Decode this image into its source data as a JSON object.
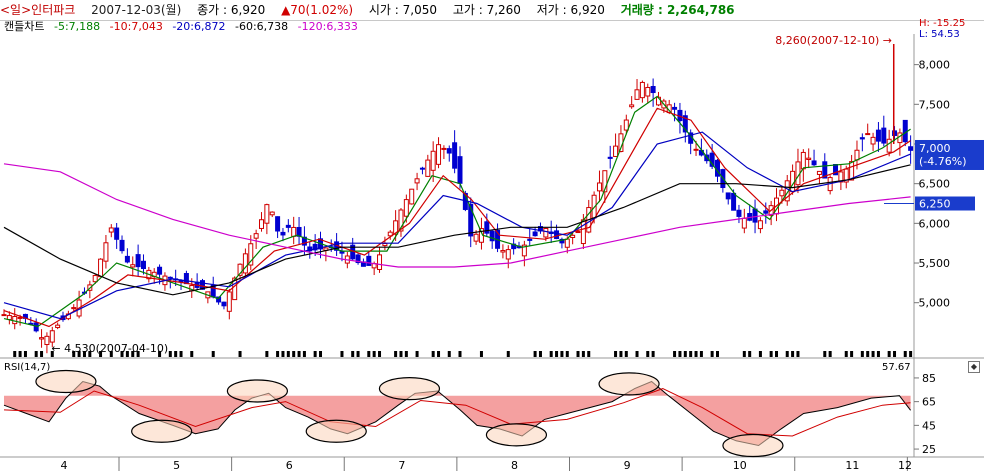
{
  "header": {
    "symbol": "<일>인터파크",
    "date": "2007-12-03(월)",
    "close_label": "종가 : 6,920",
    "change_label": "▲70(1.02%)",
    "open_label": "시가 : 7,050",
    "high_label": "고가 : 7,260",
    "low_label": "저가 : 6,920",
    "volume_label": "거래량 : 2,264,786"
  },
  "legend": {
    "candle": "캔들차트",
    "ma5": "-5:7,188",
    "ma10": "-10:7,043",
    "ma20": "-20:6,872",
    "ma60": "-60:6,738",
    "ma120": "-120:6,333"
  },
  "hl_box": {
    "h": "H: -15.25",
    "l": "L: 54.53"
  },
  "colors": {
    "ma5": "#008000",
    "ma10": "#d00000",
    "ma20": "#0000c0",
    "ma60": "#000000",
    "ma120": "#cc00cc",
    "up": "#d00000",
    "down": "#0000d0",
    "rsi_fill": "#f4a0a0",
    "rsi_line": "#000000",
    "signal": "#d00000",
    "ellipse_fill": "#fbd3b9"
  },
  "chart_data": {
    "type": "candlestick",
    "y_range": [
      4530,
      8260
    ],
    "y_ticks": [
      "8,000",
      "7,500",
      "7,000",
      "6,500",
      "6,000",
      "5,500",
      "5,000"
    ],
    "x_ticks": [
      "4",
      "5",
      "6",
      "7",
      "8",
      "9",
      "10",
      "11",
      "12"
    ],
    "annotations": {
      "high": "8,260(2007-12-10) →",
      "low": "← 4,530(2007-04-10)",
      "price_tag": "7,000",
      "price_tag_change": "(-4.76%)",
      "level_tag": "6,250"
    },
    "anchors": [
      [
        4.0,
        4850
      ],
      [
        4.2,
        4800
      ],
      [
        4.35,
        4530
      ],
      [
        4.6,
        4900
      ],
      [
        4.8,
        5300
      ],
      [
        4.95,
        5950
      ],
      [
        5.1,
        5500
      ],
      [
        5.3,
        5400
      ],
      [
        5.5,
        5300
      ],
      [
        5.8,
        5150
      ],
      [
        5.95,
        4950
      ],
      [
        6.1,
        5500
      ],
      [
        6.25,
        5900
      ],
      [
        6.35,
        6300
      ],
      [
        6.45,
        5800
      ],
      [
        6.55,
        6000
      ],
      [
        6.7,
        5650
      ],
      [
        6.9,
        5700
      ],
      [
        7.1,
        5550
      ],
      [
        7.2,
        5450
      ],
      [
        7.3,
        5500
      ],
      [
        7.5,
        6100
      ],
      [
        7.7,
        6650
      ],
      [
        7.85,
        7000
      ],
      [
        7.95,
        6900
      ],
      [
        8.05,
        6500
      ],
      [
        8.15,
        5800
      ],
      [
        8.25,
        5950
      ],
      [
        8.4,
        5650
      ],
      [
        8.6,
        5700
      ],
      [
        8.8,
        5950
      ],
      [
        8.95,
        5750
      ],
      [
        9.1,
        5900
      ],
      [
        9.3,
        6550
      ],
      [
        9.5,
        7200
      ],
      [
        9.65,
        7800
      ],
      [
        9.8,
        7600
      ],
      [
        9.95,
        7450
      ],
      [
        10.1,
        7000
      ],
      [
        10.3,
        6700
      ],
      [
        10.5,
        6100
      ],
      [
        10.7,
        6000
      ],
      [
        10.9,
        6400
      ],
      [
        11.1,
        6900
      ],
      [
        11.3,
        6550
      ],
      [
        11.5,
        6700
      ],
      [
        11.65,
        7150
      ],
      [
        11.8,
        7000
      ],
      [
        11.95,
        7150
      ],
      [
        12.05,
        6920
      ]
    ],
    "moving_averages": [
      {
        "name": "5",
        "points": [
          [
            4.0,
            4800
          ],
          [
            4.3,
            4700
          ],
          [
            4.7,
            5100
          ],
          [
            5.0,
            5500
          ],
          [
            5.4,
            5300
          ],
          [
            5.9,
            5050
          ],
          [
            6.3,
            5700
          ],
          [
            6.6,
            5850
          ],
          [
            7.0,
            5650
          ],
          [
            7.4,
            5650
          ],
          [
            7.8,
            6600
          ],
          [
            8.05,
            6500
          ],
          [
            8.25,
            5850
          ],
          [
            8.6,
            5700
          ],
          [
            9.0,
            5800
          ],
          [
            9.3,
            6300
          ],
          [
            9.6,
            7400
          ],
          [
            9.8,
            7600
          ],
          [
            10.1,
            7100
          ],
          [
            10.5,
            6350
          ],
          [
            10.8,
            6050
          ],
          [
            11.1,
            6700
          ],
          [
            11.5,
            6750
          ],
          [
            11.8,
            6950
          ],
          [
            12.05,
            7188
          ]
        ]
      },
      {
        "name": "10",
        "points": [
          [
            4.0,
            4900
          ],
          [
            4.4,
            4700
          ],
          [
            4.8,
            5050
          ],
          [
            5.1,
            5350
          ],
          [
            5.6,
            5250
          ],
          [
            6.0,
            5150
          ],
          [
            6.4,
            5650
          ],
          [
            6.8,
            5800
          ],
          [
            7.2,
            5600
          ],
          [
            7.6,
            6000
          ],
          [
            7.9,
            6600
          ],
          [
            8.15,
            6300
          ],
          [
            8.4,
            5850
          ],
          [
            8.8,
            5800
          ],
          [
            9.2,
            5950
          ],
          [
            9.5,
            6700
          ],
          [
            9.8,
            7450
          ],
          [
            10.1,
            7300
          ],
          [
            10.4,
            6700
          ],
          [
            10.8,
            6150
          ],
          [
            11.1,
            6500
          ],
          [
            11.5,
            6700
          ],
          [
            11.9,
            6900
          ],
          [
            12.05,
            7043
          ]
        ]
      },
      {
        "name": "20",
        "points": [
          [
            4.0,
            5000
          ],
          [
            4.5,
            4800
          ],
          [
            5.0,
            5150
          ],
          [
            5.5,
            5300
          ],
          [
            6.0,
            5200
          ],
          [
            6.5,
            5600
          ],
          [
            7.0,
            5750
          ],
          [
            7.5,
            5750
          ],
          [
            7.9,
            6350
          ],
          [
            8.2,
            6250
          ],
          [
            8.6,
            5950
          ],
          [
            9.0,
            5850
          ],
          [
            9.4,
            6200
          ],
          [
            9.8,
            7000
          ],
          [
            10.2,
            7150
          ],
          [
            10.6,
            6700
          ],
          [
            11.0,
            6400
          ],
          [
            11.5,
            6550
          ],
          [
            12.05,
            6872
          ]
        ]
      },
      {
        "name": "60",
        "points": [
          [
            4.0,
            5950
          ],
          [
            4.5,
            5550
          ],
          [
            5.0,
            5250
          ],
          [
            5.5,
            5100
          ],
          [
            6.0,
            5250
          ],
          [
            6.5,
            5550
          ],
          [
            7.0,
            5700
          ],
          [
            7.5,
            5700
          ],
          [
            8.0,
            5850
          ],
          [
            8.5,
            5950
          ],
          [
            9.0,
            5950
          ],
          [
            9.5,
            6200
          ],
          [
            10.0,
            6500
          ],
          [
            10.5,
            6500
          ],
          [
            11.0,
            6450
          ],
          [
            11.5,
            6550
          ],
          [
            12.05,
            6738
          ]
        ]
      },
      {
        "name": "120",
        "points": [
          [
            4.0,
            6750
          ],
          [
            4.5,
            6650
          ],
          [
            5.0,
            6300
          ],
          [
            5.5,
            6050
          ],
          [
            6.0,
            5850
          ],
          [
            6.5,
            5700
          ],
          [
            7.0,
            5550
          ],
          [
            7.5,
            5450
          ],
          [
            8.0,
            5450
          ],
          [
            8.5,
            5500
          ],
          [
            9.0,
            5650
          ],
          [
            9.5,
            5800
          ],
          [
            10.0,
            5950
          ],
          [
            10.5,
            6050
          ],
          [
            11.0,
            6150
          ],
          [
            11.5,
            6250
          ],
          [
            12.05,
            6333
          ]
        ]
      }
    ],
    "rsi": {
      "title": "RSI(14,7)",
      "last": "57.67",
      "y_ticks": [
        "85",
        "65",
        "45",
        "25"
      ],
      "points": [
        [
          4.0,
          62
        ],
        [
          4.2,
          55
        ],
        [
          4.4,
          48
        ],
        [
          4.55,
          68
        ],
        [
          4.7,
          82
        ],
        [
          4.85,
          78
        ],
        [
          4.95,
          70
        ],
        [
          5.2,
          55
        ],
        [
          5.5,
          45
        ],
        [
          5.7,
          38
        ],
        [
          5.9,
          42
        ],
        [
          6.05,
          58
        ],
        [
          6.2,
          68
        ],
        [
          6.35,
          72
        ],
        [
          6.5,
          60
        ],
        [
          6.7,
          52
        ],
        [
          6.9,
          42
        ],
        [
          7.05,
          38
        ],
        [
          7.3,
          48
        ],
        [
          7.5,
          62
        ],
        [
          7.65,
          72
        ],
        [
          7.85,
          74
        ],
        [
          8.05,
          58
        ],
        [
          8.2,
          45
        ],
        [
          8.4,
          42
        ],
        [
          8.6,
          36
        ],
        [
          8.8,
          50
        ],
        [
          9.0,
          55
        ],
        [
          9.2,
          60
        ],
        [
          9.4,
          65
        ],
        [
          9.6,
          76
        ],
        [
          9.75,
          82
        ],
        [
          9.9,
          70
        ],
        [
          10.1,
          55
        ],
        [
          10.3,
          40
        ],
        [
          10.5,
          32
        ],
        [
          10.7,
          28
        ],
        [
          10.9,
          42
        ],
        [
          11.1,
          55
        ],
        [
          11.4,
          60
        ],
        [
          11.7,
          68
        ],
        [
          11.95,
          70
        ],
        [
          12.05,
          57.67
        ]
      ],
      "signal": [
        [
          4.0,
          58
        ],
        [
          4.5,
          56
        ],
        [
          4.8,
          74
        ],
        [
          5.2,
          62
        ],
        [
          5.7,
          44
        ],
        [
          6.2,
          60
        ],
        [
          6.5,
          65
        ],
        [
          6.9,
          48
        ],
        [
          7.3,
          44
        ],
        [
          7.7,
          66
        ],
        [
          8.1,
          62
        ],
        [
          8.5,
          46
        ],
        [
          9.0,
          50
        ],
        [
          9.5,
          64
        ],
        [
          9.85,
          76
        ],
        [
          10.2,
          60
        ],
        [
          10.6,
          38
        ],
        [
          11.0,
          36
        ],
        [
          11.4,
          52
        ],
        [
          11.8,
          62
        ],
        [
          12.05,
          64
        ]
      ],
      "ellipses": [
        [
          4.55,
          82
        ],
        [
          5.4,
          40
        ],
        [
          6.25,
          74
        ],
        [
          6.95,
          40
        ],
        [
          7.6,
          76
        ],
        [
          8.55,
          37
        ],
        [
          9.55,
          80
        ],
        [
          10.65,
          28
        ]
      ]
    }
  }
}
